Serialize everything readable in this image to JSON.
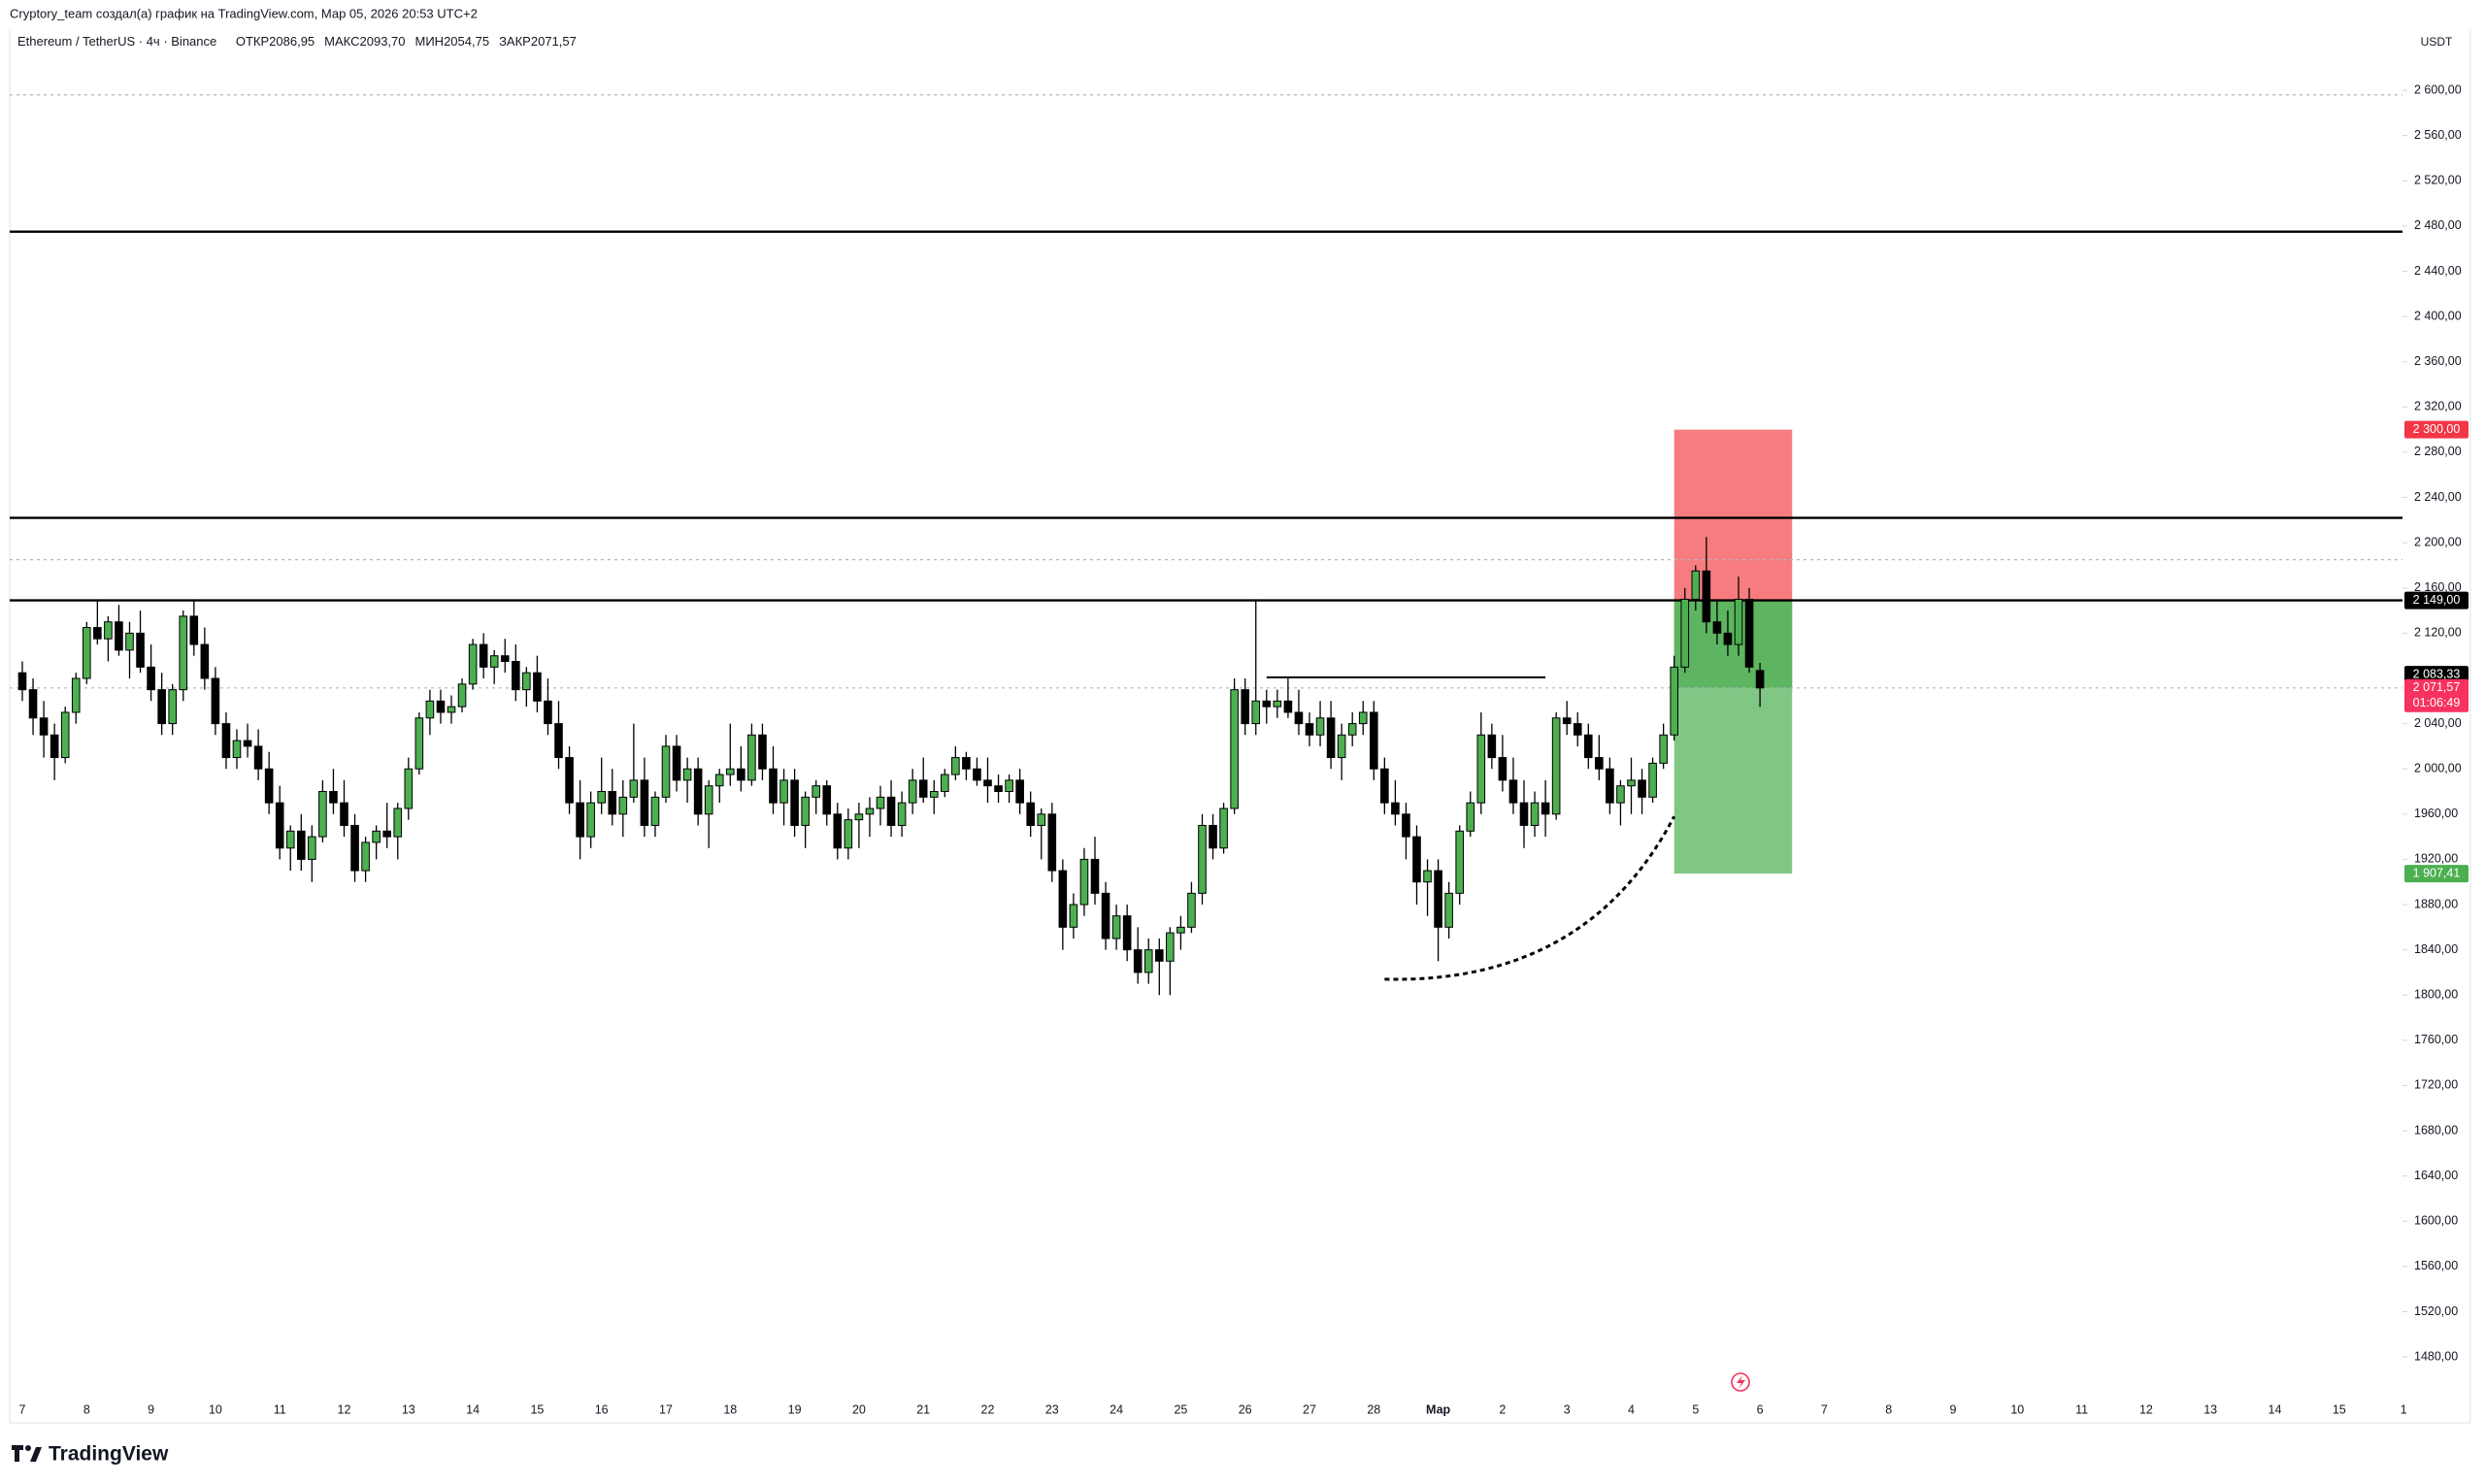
{
  "header": {
    "attribution": "Cryptory_team создал(а) график на TradingView.com, Мар 05, 2026 20:53 UTC+2"
  },
  "footer": {
    "brand": "TradingView"
  },
  "chart_data": {
    "type": "candlestick",
    "title": "Ethereum / TetherUS · 4ч · Binance",
    "legend": [
      {
        "name": "ОТКР",
        "label": "2086,95"
      },
      {
        "name": "МАКС",
        "label": "2093,70"
      },
      {
        "name": "МИН",
        "label": "2054,75"
      },
      {
        "name": "ЗАКР",
        "label": "2071,57"
      }
    ],
    "currency": "USDT",
    "x": [
      "7",
      "8",
      "9",
      "10",
      "11",
      "12",
      "13",
      "14",
      "15",
      "16",
      "17",
      "18",
      "19",
      "20",
      "21",
      "22",
      "23",
      "24",
      "25",
      "26",
      "27",
      "28",
      "Мар",
      "2",
      "3",
      "4",
      "5",
      "6",
      "7",
      "8",
      "9",
      "10",
      "11",
      "12",
      "13",
      "14",
      "15",
      "1"
    ],
    "ylim": [
      1420,
      2655
    ],
    "yticks": [
      {
        "value": 2600,
        "label": "2 600,00"
      },
      {
        "value": 2560,
        "label": "2 560,00"
      },
      {
        "value": 2520,
        "label": "2 520,00"
      },
      {
        "value": 2480,
        "label": "2 480,00"
      },
      {
        "value": 2440,
        "label": "2 440,00"
      },
      {
        "value": 2400,
        "label": "2 400,00"
      },
      {
        "value": 2360,
        "label": "2 360,00"
      },
      {
        "value": 2320,
        "label": "2 320,00"
      },
      {
        "value": 2280,
        "label": "2 280,00"
      },
      {
        "value": 2240,
        "label": "2 240,00"
      },
      {
        "value": 2200,
        "label": "2 200,00"
      },
      {
        "value": 2160,
        "label": "2 160,00"
      },
      {
        "value": 2120,
        "label": "2 120,00"
      },
      {
        "value": 2080,
        "label": "2 080,00"
      },
      {
        "value": 2040,
        "label": "2 040,00"
      },
      {
        "value": 2000,
        "label": "2 000,00"
      },
      {
        "value": 1960,
        "label": "1960,00"
      },
      {
        "value": 1920,
        "label": "1920,00"
      },
      {
        "value": 1880,
        "label": "1880,00"
      },
      {
        "value": 1840,
        "label": "1840,00"
      },
      {
        "value": 1800,
        "label": "1800,00"
      },
      {
        "value": 1760,
        "label": "1760,00"
      },
      {
        "value": 1720,
        "label": "1720,00"
      },
      {
        "value": 1680,
        "label": "1680,00"
      },
      {
        "value": 1640,
        "label": "1640,00"
      },
      {
        "value": 1600,
        "label": "1600,00"
      },
      {
        "value": 1560,
        "label": "1560,00"
      },
      {
        "value": 1520,
        "label": "1520,00"
      },
      {
        "value": 1480,
        "label": "1480,00"
      }
    ],
    "grid": false,
    "up_color": "#4caf50",
    "down_color": "#000000",
    "candles": [
      [
        2085,
        2095,
        2060,
        2070
      ],
      [
        2070,
        2080,
        2030,
        2045
      ],
      [
        2045,
        2060,
        2010,
        2030
      ],
      [
        2030,
        2040,
        1990,
        2010
      ],
      [
        2010,
        2055,
        2005,
        2050
      ],
      [
        2050,
        2085,
        2040,
        2080
      ],
      [
        2080,
        2130,
        2075,
        2125
      ],
      [
        2125,
        2150,
        2110,
        2115
      ],
      [
        2115,
        2135,
        2095,
        2130
      ],
      [
        2130,
        2145,
        2100,
        2105
      ],
      [
        2105,
        2130,
        2080,
        2120
      ],
      [
        2120,
        2140,
        2085,
        2090
      ],
      [
        2090,
        2110,
        2060,
        2070
      ],
      [
        2070,
        2085,
        2030,
        2040
      ],
      [
        2040,
        2075,
        2030,
        2070
      ],
      [
        2070,
        2140,
        2060,
        2135
      ],
      [
        2135,
        2150,
        2100,
        2110
      ],
      [
        2110,
        2125,
        2070,
        2080
      ],
      [
        2080,
        2090,
        2030,
        2040
      ],
      [
        2040,
        2050,
        2000,
        2010
      ],
      [
        2010,
        2035,
        2000,
        2025
      ],
      [
        2025,
        2040,
        2010,
        2020
      ],
      [
        2020,
        2035,
        1990,
        2000
      ],
      [
        2000,
        2015,
        1960,
        1970
      ],
      [
        1970,
        1985,
        1920,
        1930
      ],
      [
        1930,
        1950,
        1910,
        1945
      ],
      [
        1945,
        1960,
        1910,
        1920
      ],
      [
        1920,
        1950,
        1900,
        1940
      ],
      [
        1940,
        1990,
        1935,
        1980
      ],
      [
        1980,
        2000,
        1960,
        1970
      ],
      [
        1970,
        1990,
        1940,
        1950
      ],
      [
        1950,
        1960,
        1900,
        1910
      ],
      [
        1910,
        1940,
        1900,
        1935
      ],
      [
        1935,
        1950,
        1920,
        1945
      ],
      [
        1945,
        1970,
        1930,
        1940
      ],
      [
        1940,
        1970,
        1920,
        1965
      ],
      [
        1965,
        2010,
        1955,
        2000
      ],
      [
        2000,
        2050,
        1995,
        2045
      ],
      [
        2045,
        2070,
        2030,
        2060
      ],
      [
        2060,
        2070,
        2040,
        2050
      ],
      [
        2050,
        2065,
        2040,
        2055
      ],
      [
        2055,
        2080,
        2050,
        2075
      ],
      [
        2075,
        2115,
        2070,
        2110
      ],
      [
        2110,
        2120,
        2080,
        2090
      ],
      [
        2090,
        2105,
        2075,
        2100
      ],
      [
        2100,
        2115,
        2085,
        2095
      ],
      [
        2095,
        2110,
        2060,
        2070
      ],
      [
        2070,
        2090,
        2055,
        2085
      ],
      [
        2085,
        2100,
        2050,
        2060
      ],
      [
        2060,
        2080,
        2030,
        2040
      ],
      [
        2040,
        2060,
        2000,
        2010
      ],
      [
        2010,
        2020,
        1960,
        1970
      ],
      [
        1970,
        1990,
        1920,
        1940
      ],
      [
        1940,
        1980,
        1930,
        1970
      ],
      [
        1970,
        2010,
        1960,
        1980
      ],
      [
        1980,
        2000,
        1950,
        1960
      ],
      [
        1960,
        1990,
        1940,
        1975
      ],
      [
        1975,
        2040,
        1970,
        1990
      ],
      [
        1990,
        2010,
        1940,
        1950
      ],
      [
        1950,
        1980,
        1940,
        1975
      ],
      [
        1975,
        2030,
        1970,
        2020
      ],
      [
        2020,
        2030,
        1980,
        1990
      ],
      [
        1990,
        2010,
        1970,
        2000
      ],
      [
        2000,
        2010,
        1950,
        1960
      ],
      [
        1960,
        1990,
        1930,
        1985
      ],
      [
        1985,
        2000,
        1970,
        1995
      ],
      [
        1995,
        2040,
        1985,
        2000
      ],
      [
        2000,
        2020,
        1980,
        1990
      ],
      [
        1990,
        2040,
        1985,
        2030
      ],
      [
        2030,
        2040,
        1990,
        2000
      ],
      [
        2000,
        2020,
        1960,
        1970
      ],
      [
        1970,
        2000,
        1950,
        1990
      ],
      [
        1990,
        2000,
        1940,
        1950
      ],
      [
        1950,
        1980,
        1930,
        1975
      ],
      [
        1975,
        1990,
        1960,
        1985
      ],
      [
        1985,
        1990,
        1950,
        1960
      ],
      [
        1960,
        1970,
        1920,
        1930
      ],
      [
        1930,
        1965,
        1920,
        1955
      ],
      [
        1955,
        1970,
        1930,
        1960
      ],
      [
        1960,
        1975,
        1940,
        1965
      ],
      [
        1965,
        1985,
        1950,
        1975
      ],
      [
        1975,
        1990,
        1940,
        1950
      ],
      [
        1950,
        1980,
        1940,
        1970
      ],
      [
        1970,
        2000,
        1960,
        1990
      ],
      [
        1990,
        2010,
        1970,
        1975
      ],
      [
        1975,
        1990,
        1960,
        1980
      ],
      [
        1980,
        2000,
        1975,
        1995
      ],
      [
        1995,
        2020,
        1990,
        2010
      ],
      [
        2010,
        2015,
        1990,
        2000
      ],
      [
        2000,
        2010,
        1985,
        1990
      ],
      [
        1990,
        2010,
        1970,
        1985
      ],
      [
        1985,
        1995,
        1970,
        1980
      ],
      [
        1980,
        1995,
        1970,
        1990
      ],
      [
        1990,
        2000,
        1960,
        1970
      ],
      [
        1970,
        1980,
        1940,
        1950
      ],
      [
        1950,
        1965,
        1920,
        1960
      ],
      [
        1960,
        1970,
        1900,
        1910
      ],
      [
        1910,
        1920,
        1840,
        1860
      ],
      [
        1860,
        1890,
        1850,
        1880
      ],
      [
        1880,
        1930,
        1870,
        1920
      ],
      [
        1920,
        1940,
        1880,
        1890
      ],
      [
        1890,
        1900,
        1840,
        1850
      ],
      [
        1850,
        1880,
        1840,
        1870
      ],
      [
        1870,
        1880,
        1830,
        1840
      ],
      [
        1840,
        1860,
        1810,
        1820
      ],
      [
        1820,
        1850,
        1810,
        1840
      ],
      [
        1840,
        1850,
        1800,
        1830
      ],
      [
        1830,
        1860,
        1800,
        1855
      ],
      [
        1855,
        1870,
        1840,
        1860
      ],
      [
        1860,
        1900,
        1855,
        1890
      ],
      [
        1890,
        1960,
        1880,
        1950
      ],
      [
        1950,
        1960,
        1920,
        1930
      ],
      [
        1930,
        1970,
        1925,
        1965
      ],
      [
        1965,
        2080,
        1960,
        2070
      ],
      [
        2070,
        2080,
        2030,
        2040
      ],
      [
        2040,
        2150,
        2030,
        2060
      ],
      [
        2060,
        2070,
        2040,
        2055
      ],
      [
        2055,
        2070,
        2045,
        2060
      ],
      [
        2060,
        2080,
        2045,
        2050
      ],
      [
        2050,
        2070,
        2030,
        2040
      ],
      [
        2040,
        2050,
        2020,
        2030
      ],
      [
        2030,
        2060,
        2020,
        2045
      ],
      [
        2045,
        2060,
        2000,
        2010
      ],
      [
        2010,
        2040,
        1990,
        2030
      ],
      [
        2030,
        2050,
        2020,
        2040
      ],
      [
        2040,
        2060,
        2030,
        2050
      ],
      [
        2050,
        2060,
        1990,
        2000
      ],
      [
        2000,
        2010,
        1960,
        1970
      ],
      [
        1970,
        1990,
        1950,
        1960
      ],
      [
        1960,
        1970,
        1920,
        1940
      ],
      [
        1940,
        1950,
        1880,
        1900
      ],
      [
        1900,
        1920,
        1870,
        1910
      ],
      [
        1910,
        1920,
        1830,
        1860
      ],
      [
        1860,
        1900,
        1850,
        1890
      ],
      [
        1890,
        1950,
        1880,
        1945
      ],
      [
        1945,
        1980,
        1940,
        1970
      ],
      [
        1970,
        2050,
        1960,
        2030
      ],
      [
        2030,
        2040,
        2000,
        2010
      ],
      [
        2010,
        2030,
        1980,
        1990
      ],
      [
        1990,
        2010,
        1960,
        1970
      ],
      [
        1970,
        1990,
        1930,
        1950
      ],
      [
        1950,
        1980,
        1940,
        1970
      ],
      [
        1970,
        1990,
        1940,
        1960
      ],
      [
        1960,
        2050,
        1955,
        2045
      ],
      [
        2045,
        2060,
        2030,
        2040
      ],
      [
        2040,
        2050,
        2020,
        2030
      ],
      [
        2030,
        2040,
        2000,
        2010
      ],
      [
        2010,
        2030,
        1990,
        2000
      ],
      [
        2000,
        2010,
        1960,
        1970
      ],
      [
        1970,
        1990,
        1950,
        1985
      ],
      [
        1985,
        2010,
        1960,
        1990
      ],
      [
        1990,
        2000,
        1960,
        1975
      ],
      [
        1975,
        2010,
        1970,
        2005
      ],
      [
        2005,
        2040,
        2000,
        2030
      ],
      [
        2030,
        2100,
        2025,
        2090
      ],
      [
        2090,
        2160,
        2085,
        2150
      ],
      [
        2150,
        2180,
        2140,
        2175
      ],
      [
        2175,
        2205,
        2120,
        2130
      ],
      [
        2130,
        2150,
        2110,
        2120
      ],
      [
        2120,
        2140,
        2100,
        2110
      ],
      [
        2110,
        2170,
        2100,
        2150
      ],
      [
        2150,
        2160,
        2085,
        2090
      ],
      [
        2086.95,
        2093.7,
        2054.75,
        2071.57
      ]
    ],
    "levels": [
      {
        "value": 2475,
        "style": "solid"
      },
      {
        "value": 2222,
        "style": "solid"
      },
      {
        "value": 2149,
        "style": "solid"
      },
      {
        "value": 2596,
        "style": "dotted"
      },
      {
        "value": 2185,
        "style": "dotted"
      },
      {
        "value": 2071.57,
        "style": "dotted"
      }
    ],
    "ray": {
      "value": 2081,
      "from": 116,
      "to": 142
    },
    "curve": {
      "from": [
        127,
        1814
      ],
      "to": [
        154,
        1958
      ]
    },
    "position": {
      "from": 154,
      "to": 165,
      "stop": 2300,
      "entry": 2149,
      "current": 2071.57,
      "target": 1907.41,
      "stop_color": "#f77c80",
      "profit_color": "#5db461",
      "target_color": "#81c784"
    },
    "price_labels": [
      {
        "value": 2300,
        "label": "2 300,00",
        "color": "#f23645"
      },
      {
        "value": 2149,
        "label": "2 149,00",
        "color": "#000000"
      },
      {
        "value": 2083.33,
        "label": "2 083,33",
        "color": "#000000"
      },
      {
        "value": 2071.57,
        "label": "2 071,57",
        "color": "#f7325e",
        "countdown": "01:06:49"
      },
      {
        "value": 1907.41,
        "label": "1 907,41",
        "color": "#4caf50"
      }
    ]
  }
}
